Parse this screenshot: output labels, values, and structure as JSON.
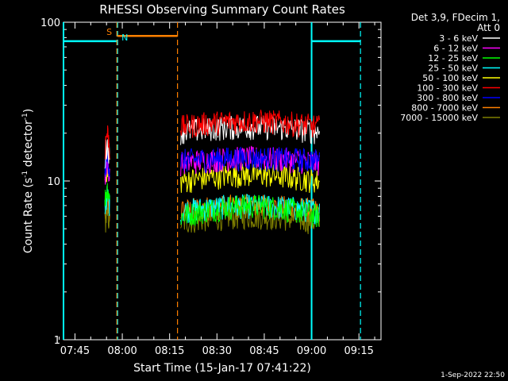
{
  "chart_data": {
    "type": "line",
    "title": "RHESSI Observing Summary Count Rates",
    "xlabel": "Start Time (15-Jan-17 07:41:22)",
    "ylabel_main": "Count Rate (s",
    "ylabel_sup": "-1",
    "ylabel_rest": " detector",
    "ylabel_sup2": "-1",
    "ylabel_close": ")",
    "yscale": "log",
    "ylim": [
      1,
      100
    ],
    "xlim": [
      "07:41:22",
      "09:22:00"
    ],
    "x_ticks": [
      "07:45",
      "08:00",
      "08:15",
      "08:30",
      "08:45",
      "09:00",
      "09:15"
    ],
    "y_ticks": [
      "1",
      "10",
      "100"
    ],
    "legend_header": [
      "Det 3,9, FDecim 1,",
      "Att 0"
    ],
    "legend_position": "right",
    "footer_date": "1-Sep-2022 22:50",
    "markers": [
      {
        "label": "S",
        "color": "#ff8000"
      },
      {
        "label": "N",
        "color": "#00ffff"
      }
    ],
    "series": [
      {
        "name": "3 - 6 keV",
        "color": "#ffffff",
        "seg1": [
          10,
          17
        ],
        "seg2": [
          19,
          22
        ]
      },
      {
        "name": "6 - 12 keV",
        "color": "#ff00ff",
        "seg1": [
          8,
          13
        ],
        "seg2": [
          12,
          14
        ]
      },
      {
        "name": "12 - 25 keV",
        "color": "#00ff00",
        "seg1": [
          6,
          9
        ],
        "seg2": [
          5,
          7
        ]
      },
      {
        "name": "25 - 50 keV",
        "color": "#00ffff",
        "seg1": [
          6,
          8
        ],
        "seg2": [
          6,
          7
        ]
      },
      {
        "name": "50 - 100 keV",
        "color": "#ffff00",
        "seg1": [
          8,
          12
        ],
        "seg2": [
          9,
          11
        ]
      },
      {
        "name": "100 - 300 keV",
        "color": "#ff0000",
        "seg1": [
          12,
          20
        ],
        "seg2": [
          20,
          24
        ]
      },
      {
        "name": "300 - 800 keV",
        "color": "#0000ff",
        "seg1": [
          9,
          14
        ],
        "seg2": [
          13,
          14
        ]
      },
      {
        "name": "800 - 7000 keV",
        "color": "#ff8000",
        "seg1": [
          5,
          7
        ],
        "seg2": [
          6,
          7
        ]
      },
      {
        "name": "7000 - 15000 keV",
        "color": "#808000",
        "seg1": [
          5,
          6
        ],
        "seg2": [
          5,
          6
        ]
      }
    ]
  }
}
